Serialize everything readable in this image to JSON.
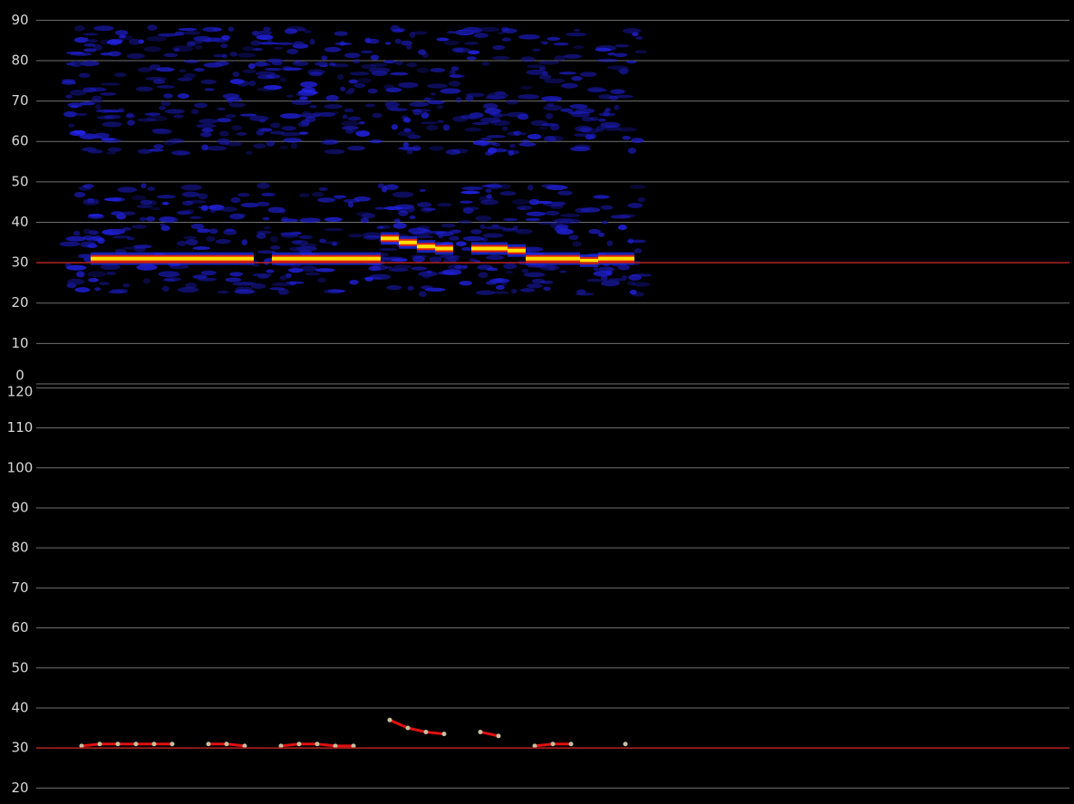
{
  "chart_data": [
    {
      "type": "spectrogram",
      "ylim": [
        0,
        95
      ],
      "yticks": [
        0,
        10,
        20,
        30,
        40,
        50,
        60,
        70,
        80,
        90
      ],
      "grid": true,
      "reference_line": 30,
      "reference_color": "#b02020",
      "color": "#ffe000",
      "values": [
        null,
        null,
        null,
        31,
        31,
        31,
        31,
        31,
        31,
        31,
        31,
        31,
        null,
        31,
        31,
        31,
        31,
        31,
        31,
        36,
        35,
        34,
        33.5,
        null,
        33.5,
        33.5,
        33,
        31,
        31,
        31,
        30.5,
        31,
        31,
        null,
        null,
        null,
        null,
        null,
        null,
        null,
        null,
        null,
        null,
        null,
        null,
        null,
        null,
        null,
        null,
        null,
        null,
        null,
        null,
        null,
        null,
        null,
        null
      ]
    },
    {
      "type": "line",
      "ylim": [
        16,
        121
      ],
      "yticks": [
        20,
        30,
        40,
        50,
        60,
        70,
        80,
        90,
        100,
        110,
        120
      ],
      "grid": true,
      "reference_line": 30,
      "reference_color": "#b02020",
      "color": "#e01010",
      "point_color": "#c8c0a0",
      "values": [
        null,
        null,
        30.5,
        31,
        31,
        31,
        31,
        31,
        null,
        31,
        31,
        30.5,
        null,
        30.5,
        31,
        31,
        30.5,
        30.5,
        null,
        37,
        35,
        34,
        33.5,
        null,
        34,
        33,
        null,
        30.5,
        31,
        31,
        null,
        null,
        31,
        null,
        null,
        null,
        null,
        null,
        null,
        null,
        null,
        null,
        null,
        null,
        null,
        null,
        null,
        null,
        null,
        null,
        null,
        null,
        null,
        null,
        null,
        null,
        null
      ]
    }
  ]
}
